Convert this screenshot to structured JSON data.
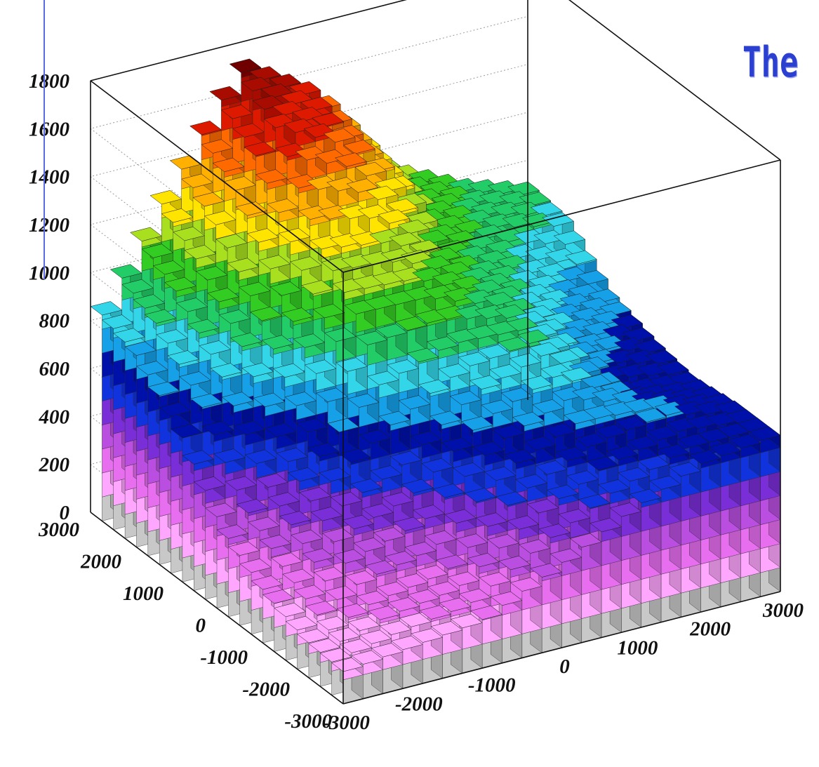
{
  "header": {
    "title": "The C"
  },
  "chart_data": {
    "type": "lego3d",
    "title": "The C",
    "z_ticks": [
      "0",
      "200",
      "400",
      "600",
      "800",
      "1000",
      "1200",
      "1400",
      "1600",
      "1800"
    ],
    "y_ticks": [
      "3000",
      "2000",
      "1000",
      "0",
      "-1000",
      "-2000",
      "-3000"
    ],
    "x_ticks": [
      "-3000",
      "-2000",
      "-1000",
      "0",
      "1000",
      "2000",
      "3000"
    ],
    "xlim": [
      -3000,
      3000
    ],
    "ylim": [
      -3000,
      3000
    ],
    "zlim": [
      0,
      1800
    ],
    "palette": [
      "#c8c8c8",
      "#ffa6ff",
      "#e86ef0",
      "#b94ee0",
      "#7a2ed8",
      "#1133dd",
      "#0011aa",
      "#15a0e8",
      "#33d6e8",
      "#22cc66",
      "#33cc22",
      "#a8e020",
      "#ffe400",
      "#ffb000",
      "#ff6a00",
      "#dd1a00",
      "#a80c00",
      "#700000"
    ],
    "height_samples_xy": {
      "x": [
        -3000,
        -2000,
        -1000,
        0,
        1000,
        2000,
        3000
      ],
      "y": [
        -3000,
        -2000,
        -1000,
        0,
        1000,
        2000,
        3000
      ],
      "z_rows_by_y": [
        [
          130,
          150,
          180,
          300,
          460,
          600,
          660
        ],
        [
          130,
          250,
          300,
          550,
          680,
          720,
          640
        ],
        [
          180,
          450,
          560,
          800,
          900,
          650,
          620
        ],
        [
          300,
          620,
          1050,
          1050,
          950,
          760,
          640
        ],
        [
          560,
          950,
          1250,
          1200,
          1000,
          850,
          700
        ],
        [
          740,
          1150,
          1600,
          1450,
          1100,
          950,
          880
        ],
        [
          800,
          1300,
          1750,
          1550,
          1150,
          1000,
          900
        ]
      ]
    }
  }
}
